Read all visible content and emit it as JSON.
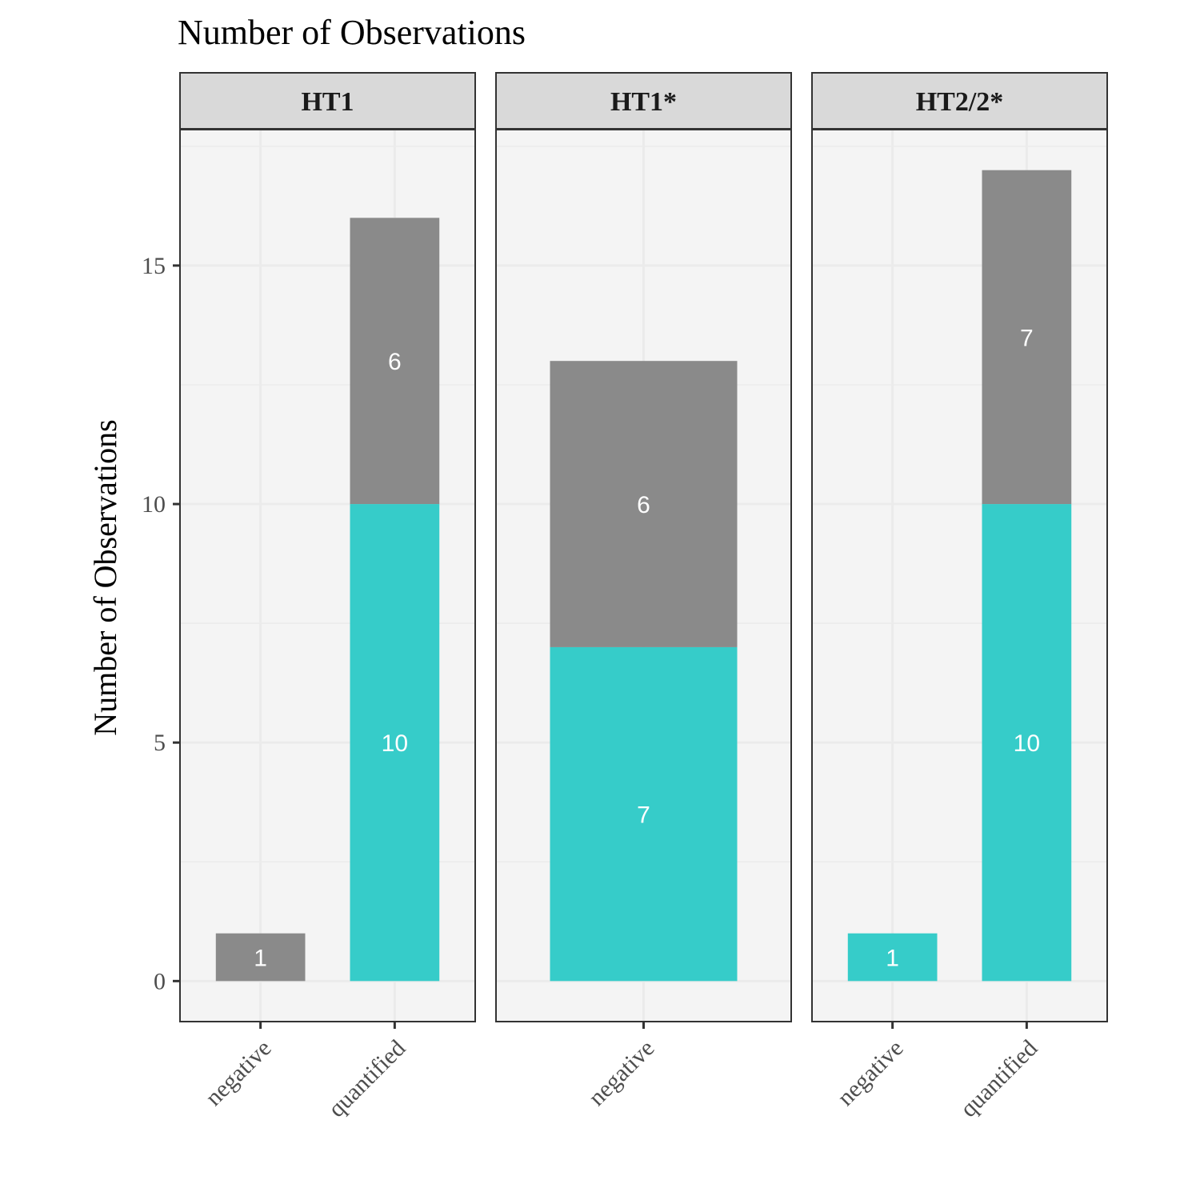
{
  "chart_data": {
    "type": "bar",
    "stacked": true,
    "faceted": true,
    "title": "Number of Observations",
    "xlabel": "",
    "ylabel": "Number of Observations",
    "ylim": [
      -0.85,
      17.85
    ],
    "yticks": [
      0,
      5,
      10,
      15
    ],
    "grid": true,
    "legend": "none",
    "colors": {
      "cyan": "#36CCC9",
      "grey": "#8A8A8A"
    },
    "facets": [
      {
        "name": "HT1",
        "categories": [
          "negative",
          "quantified"
        ],
        "bars": [
          {
            "category": "negative",
            "segments": [
              {
                "value": 1,
                "color": "grey"
              }
            ]
          },
          {
            "category": "quantified",
            "segments": [
              {
                "value": 10,
                "color": "cyan"
              },
              {
                "value": 6,
                "color": "grey"
              }
            ]
          }
        ]
      },
      {
        "name": "HT1*",
        "categories": [
          "negative"
        ],
        "bars": [
          {
            "category": "negative",
            "segments": [
              {
                "value": 7,
                "color": "cyan"
              },
              {
                "value": 6,
                "color": "grey"
              }
            ]
          }
        ]
      },
      {
        "name": "HT2/2*",
        "categories": [
          "negative",
          "quantified"
        ],
        "bars": [
          {
            "category": "negative",
            "segments": [
              {
                "value": 1,
                "color": "cyan"
              }
            ]
          },
          {
            "category": "quantified",
            "segments": [
              {
                "value": 10,
                "color": "cyan"
              },
              {
                "value": 7,
                "color": "grey"
              }
            ]
          }
        ]
      }
    ]
  }
}
